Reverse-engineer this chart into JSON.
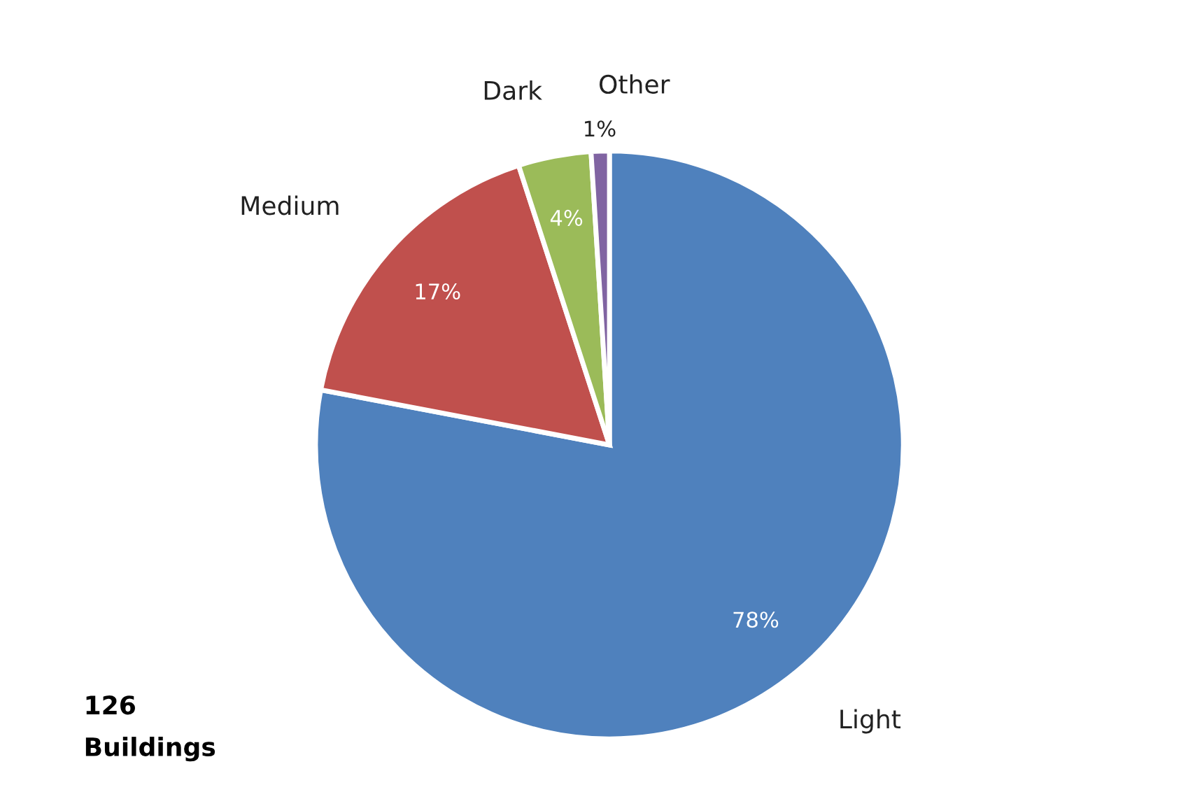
{
  "chart_data": {
    "type": "pie",
    "categories": [
      "Light",
      "Medium",
      "Dark",
      "Other"
    ],
    "values": [
      78,
      17,
      4,
      1
    ],
    "value_labels": [
      "78%",
      "17%",
      "4%",
      "1%"
    ],
    "colors": [
      "#4f81bd",
      "#c0504d",
      "#9bbb59",
      "#8064a2"
    ],
    "annotations": [
      "126\nBuildings"
    ],
    "legend": false
  }
}
